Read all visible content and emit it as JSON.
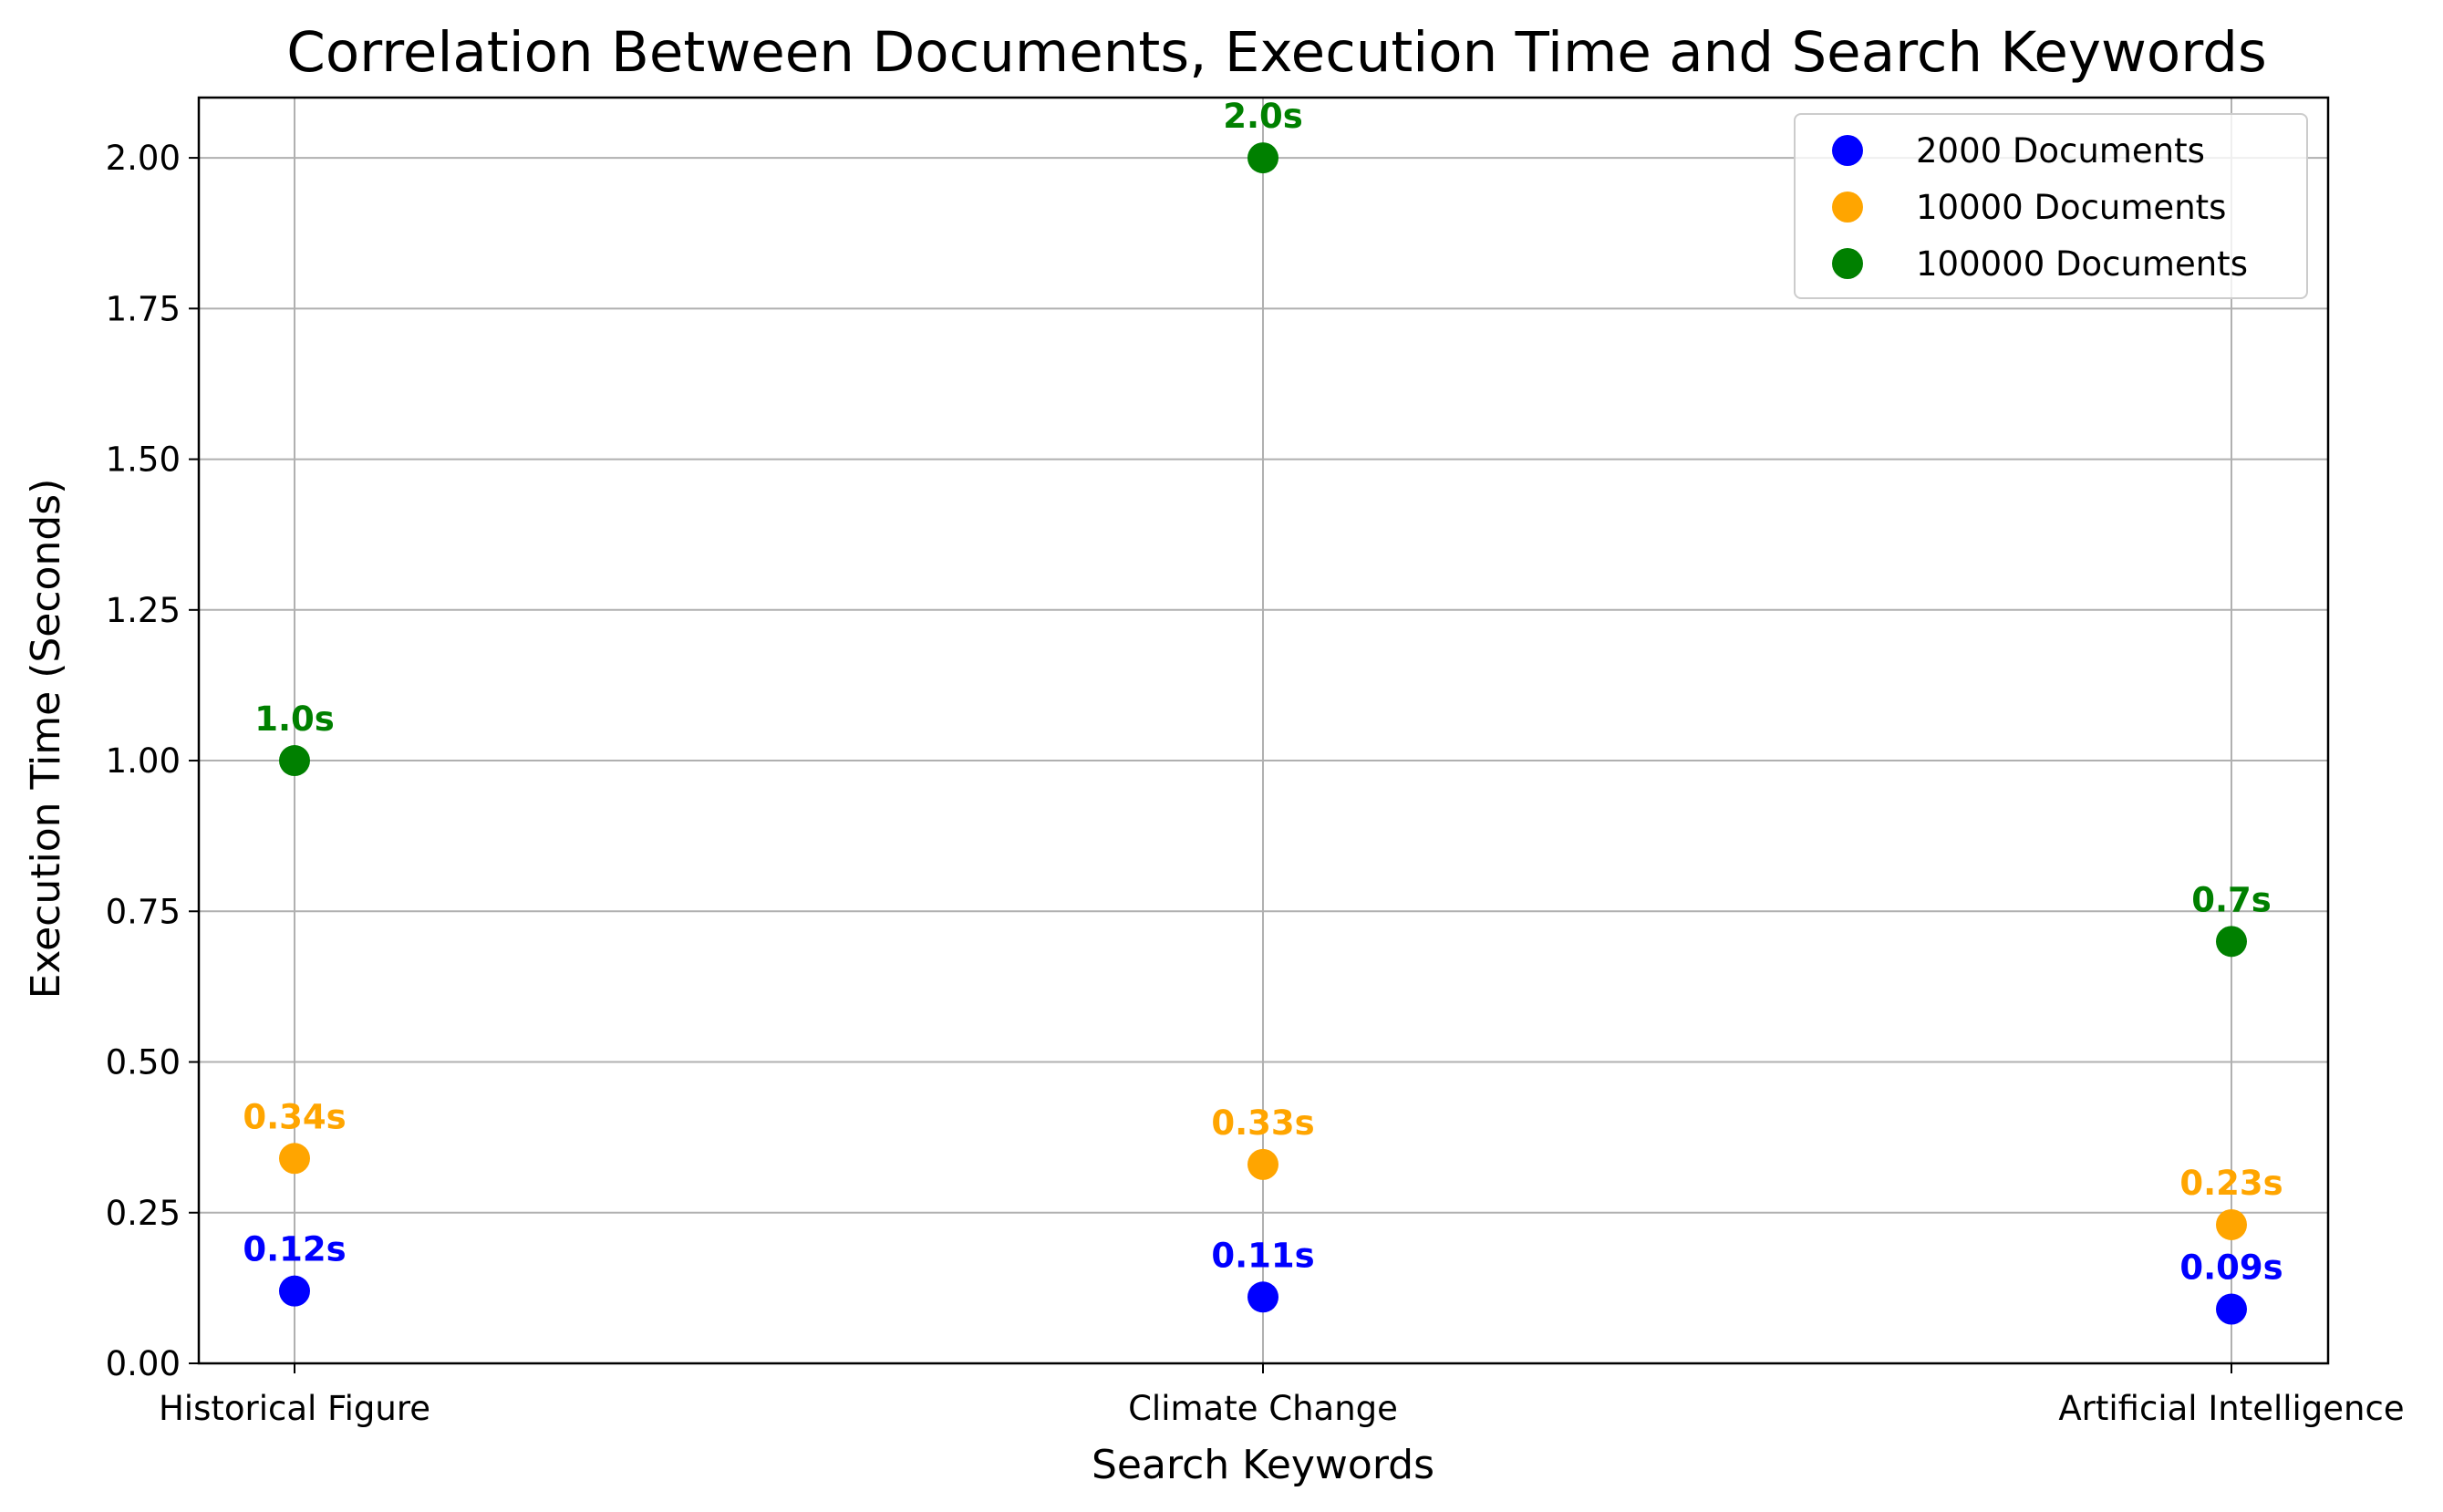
{
  "chart_data": {
    "type": "scatter",
    "title": "Correlation Between Documents, Execution Time and Search Keywords",
    "xlabel": "Search Keywords",
    "ylabel": "Execution Time (Seconds)",
    "categories": [
      "Historical Figure",
      "Climate Change",
      "Artificial Intelligence"
    ],
    "ylim": [
      0,
      2.1
    ],
    "yticks": [
      "0.00",
      "0.25",
      "0.50",
      "0.75",
      "1.00",
      "1.25",
      "1.50",
      "1.75",
      "2.00"
    ],
    "grid": true,
    "legend_position": "top-right",
    "series": [
      {
        "name": "2000 Documents",
        "color": "#0000ff",
        "values": [
          0.12,
          0.11,
          0.09
        ],
        "labels": [
          "0.12s",
          "0.11s",
          "0.09s"
        ]
      },
      {
        "name": "10000 Documents",
        "color": "#ffa500",
        "values": [
          0.34,
          0.33,
          0.23
        ],
        "labels": [
          "0.34s",
          "0.33s",
          "0.23s"
        ]
      },
      {
        "name": "100000 Documents",
        "color": "#008000",
        "values": [
          1.0,
          2.0,
          0.7
        ],
        "labels": [
          "1.0s",
          "2.0s",
          "0.7s"
        ]
      }
    ]
  }
}
